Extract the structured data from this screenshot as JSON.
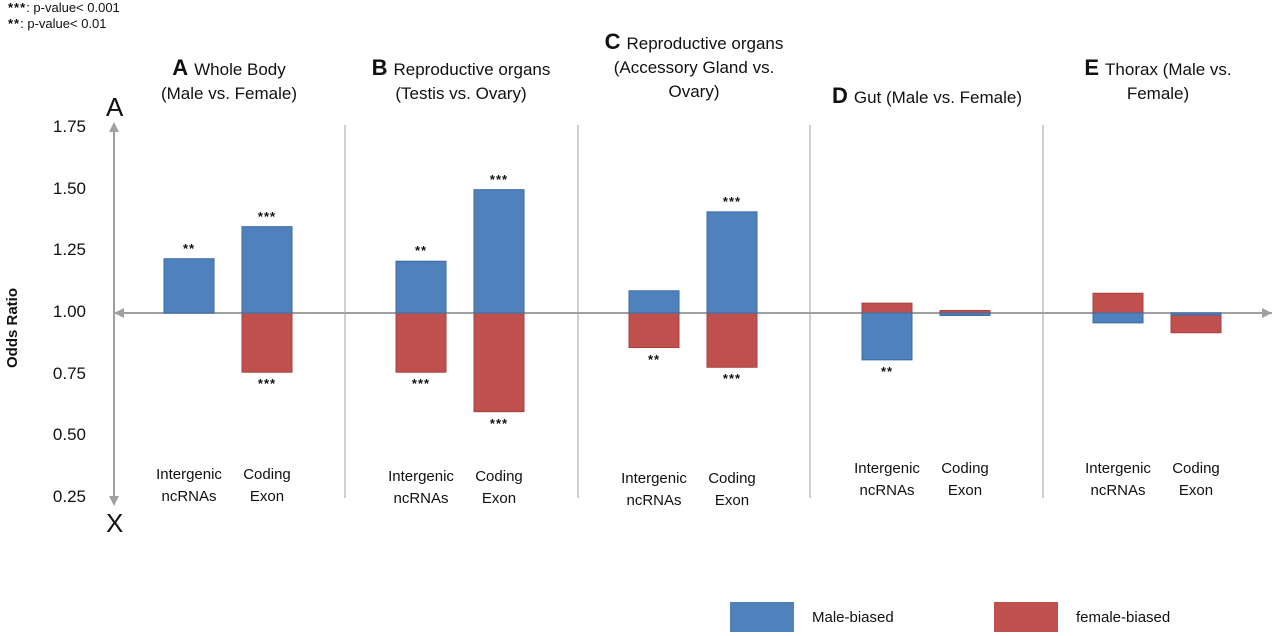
{
  "significance_legend": [
    {
      "stars": "***",
      "text": ": p-value< 0.001"
    },
    {
      "stars": "**",
      "text": ": p-value< 0.01"
    }
  ],
  "corner_top": "A",
  "corner_bottom": "X",
  "colors": {
    "male": "#4f81bd",
    "male_dark": "#3a6aa6",
    "female": "#c0504d",
    "female_dark": "#a8403d",
    "axis": "#a0a0a0",
    "divider": "#b0b0b0"
  },
  "legend": {
    "male_label": "Male-biased",
    "female_label": "female-biased"
  },
  "chart_data": {
    "type": "bar",
    "ylabel": "Odds Ratio",
    "ylim": [
      0.25,
      1.75
    ],
    "yticks": [
      "1.75",
      "1.50",
      "1.25",
      "1.00",
      "0.75",
      "0.50",
      "0.25"
    ],
    "baseline": 1.0,
    "series": [
      {
        "name": "Male-biased",
        "color_key": "male"
      },
      {
        "name": "female-biased",
        "color_key": "female"
      }
    ],
    "panels": [
      {
        "letter": "A",
        "title": "Whole Body\n(Male vs. Female)",
        "categories": [
          {
            "label": "Intergenic\nncRNAs",
            "male": 1.22,
            "female": 1.01,
            "male_sig": "**",
            "female_sig": ""
          },
          {
            "label": "Coding\nExon",
            "male": 1.35,
            "female": 0.76,
            "male_sig": "***",
            "female_sig": "***"
          }
        ]
      },
      {
        "letter": "B",
        "title": "Reproductive organs\n(Testis vs. Ovary)",
        "categories": [
          {
            "label": "Intergenic\nncRNAs",
            "male": 1.21,
            "female": 0.76,
            "male_sig": "**",
            "female_sig": "***"
          },
          {
            "label": "Coding\nExon",
            "male": 1.5,
            "female": 0.6,
            "male_sig": "***",
            "female_sig": "***"
          }
        ]
      },
      {
        "letter": "C",
        "title": "Reproductive organs\n(Accessory Gland vs.\nOvary)",
        "categories": [
          {
            "label": "Intergenic\nncRNAs",
            "male": 1.09,
            "female": 0.86,
            "male_sig": "",
            "female_sig": "**"
          },
          {
            "label": "Coding\nExon",
            "male": 1.41,
            "female": 0.78,
            "male_sig": "***",
            "female_sig": "***"
          }
        ]
      },
      {
        "letter": "D",
        "title": "Gut (Male vs. Female)",
        "categories": [
          {
            "label": "Intergenic\nncRNAs",
            "male": 0.81,
            "female": 1.04,
            "male_sig": "**",
            "female_sig": ""
          },
          {
            "label": "Coding\nExon",
            "male": 0.99,
            "female": 1.01,
            "male_sig": "",
            "female_sig": ""
          }
        ]
      },
      {
        "letter": "E",
        "title": "Thorax (Male vs.\nFemale)",
        "categories": [
          {
            "label": "Intergenic\nncRNAs",
            "male": 0.96,
            "female": 1.08,
            "male_sig": "",
            "female_sig": ""
          },
          {
            "label": "Coding\nExon",
            "male": 1.0,
            "female": 0.92,
            "male_sig": "",
            "female_sig": ""
          }
        ]
      }
    ]
  }
}
